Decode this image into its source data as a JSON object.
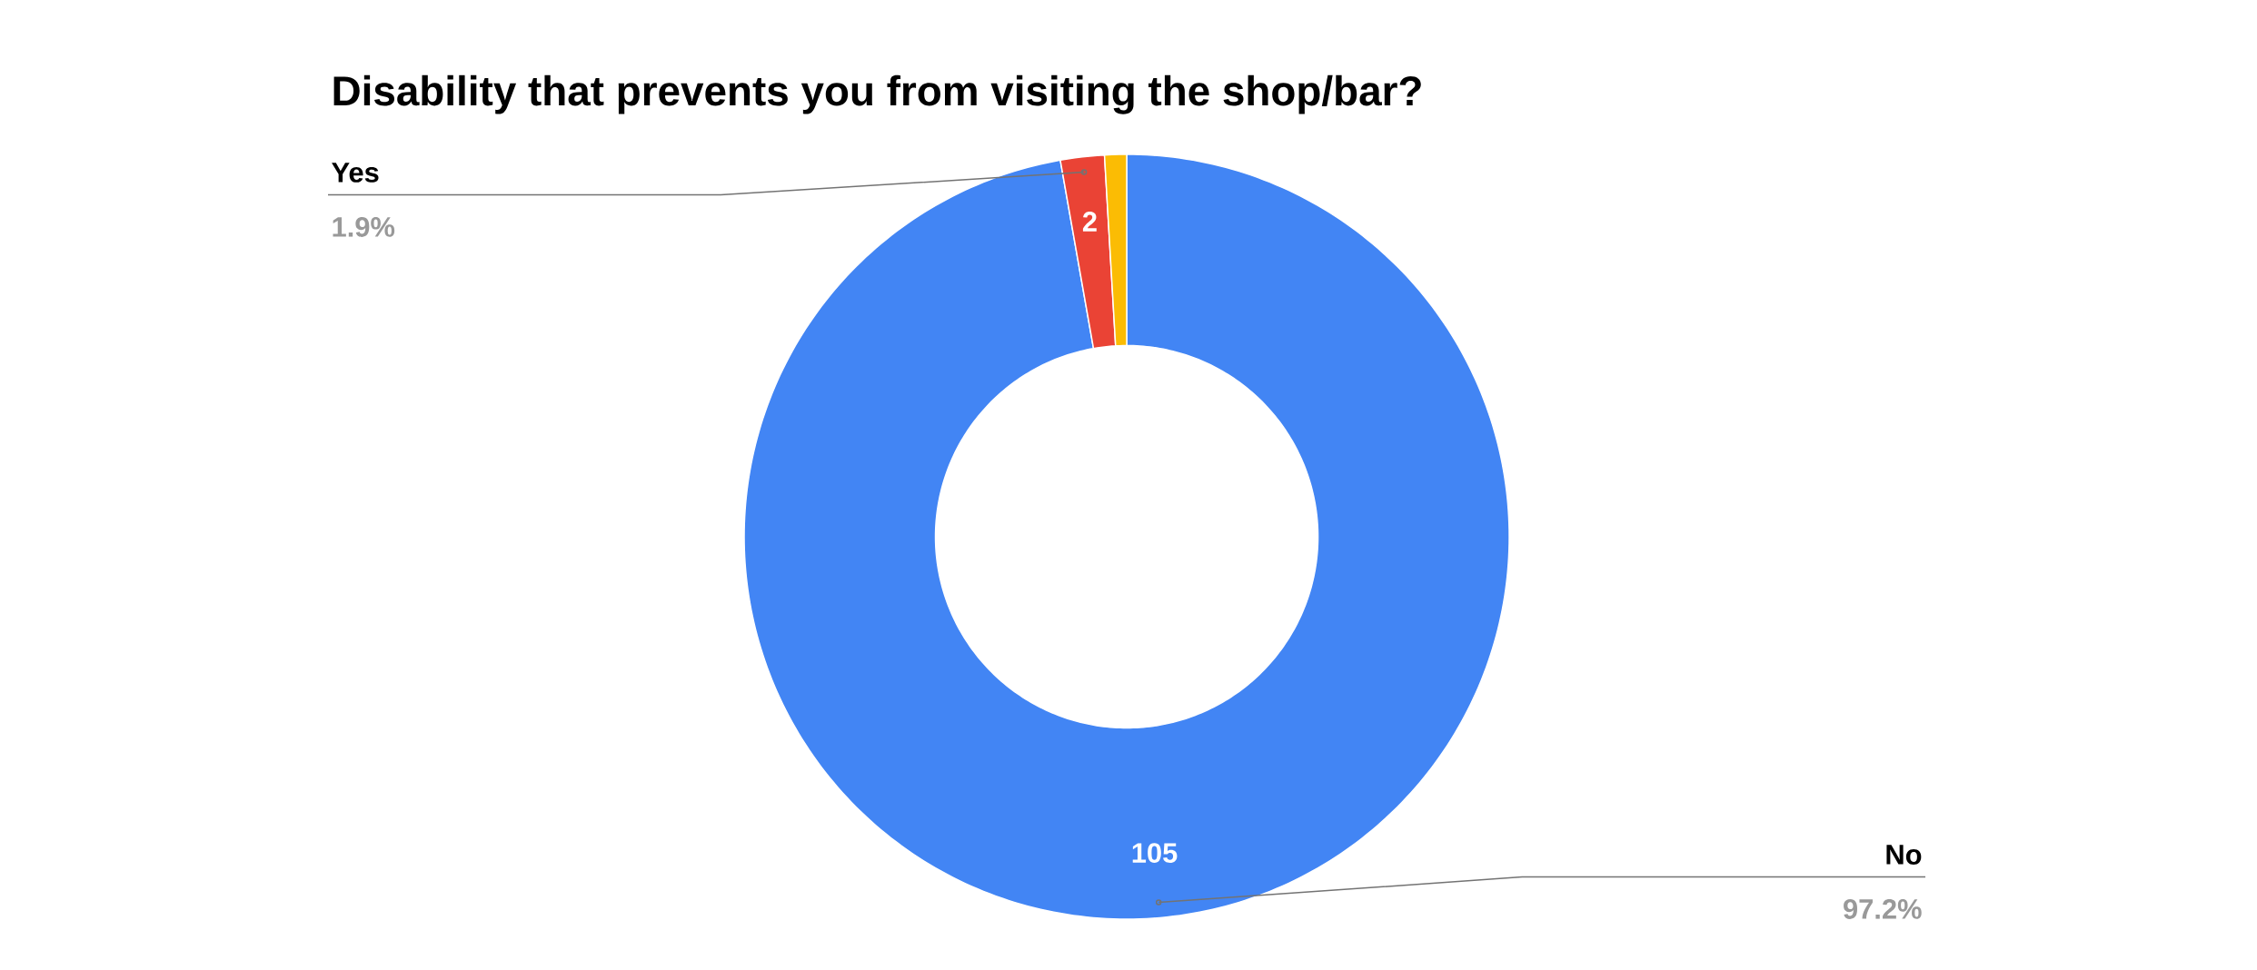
{
  "chart_data": {
    "type": "donut",
    "title": "Disability that prevents you from visiting the shop/bar?",
    "categories": [
      "No",
      "Yes",
      null
    ],
    "values": [
      105,
      2,
      1
    ],
    "colors": [
      "#4285f4",
      "#ea4335",
      "#fbbc04"
    ],
    "value_labels": [
      "105",
      "2",
      null
    ],
    "annotations": [
      {
        "text": "97.2%",
        "x": "No"
      },
      {
        "text": "1.9%",
        "x": "Yes"
      }
    ]
  }
}
